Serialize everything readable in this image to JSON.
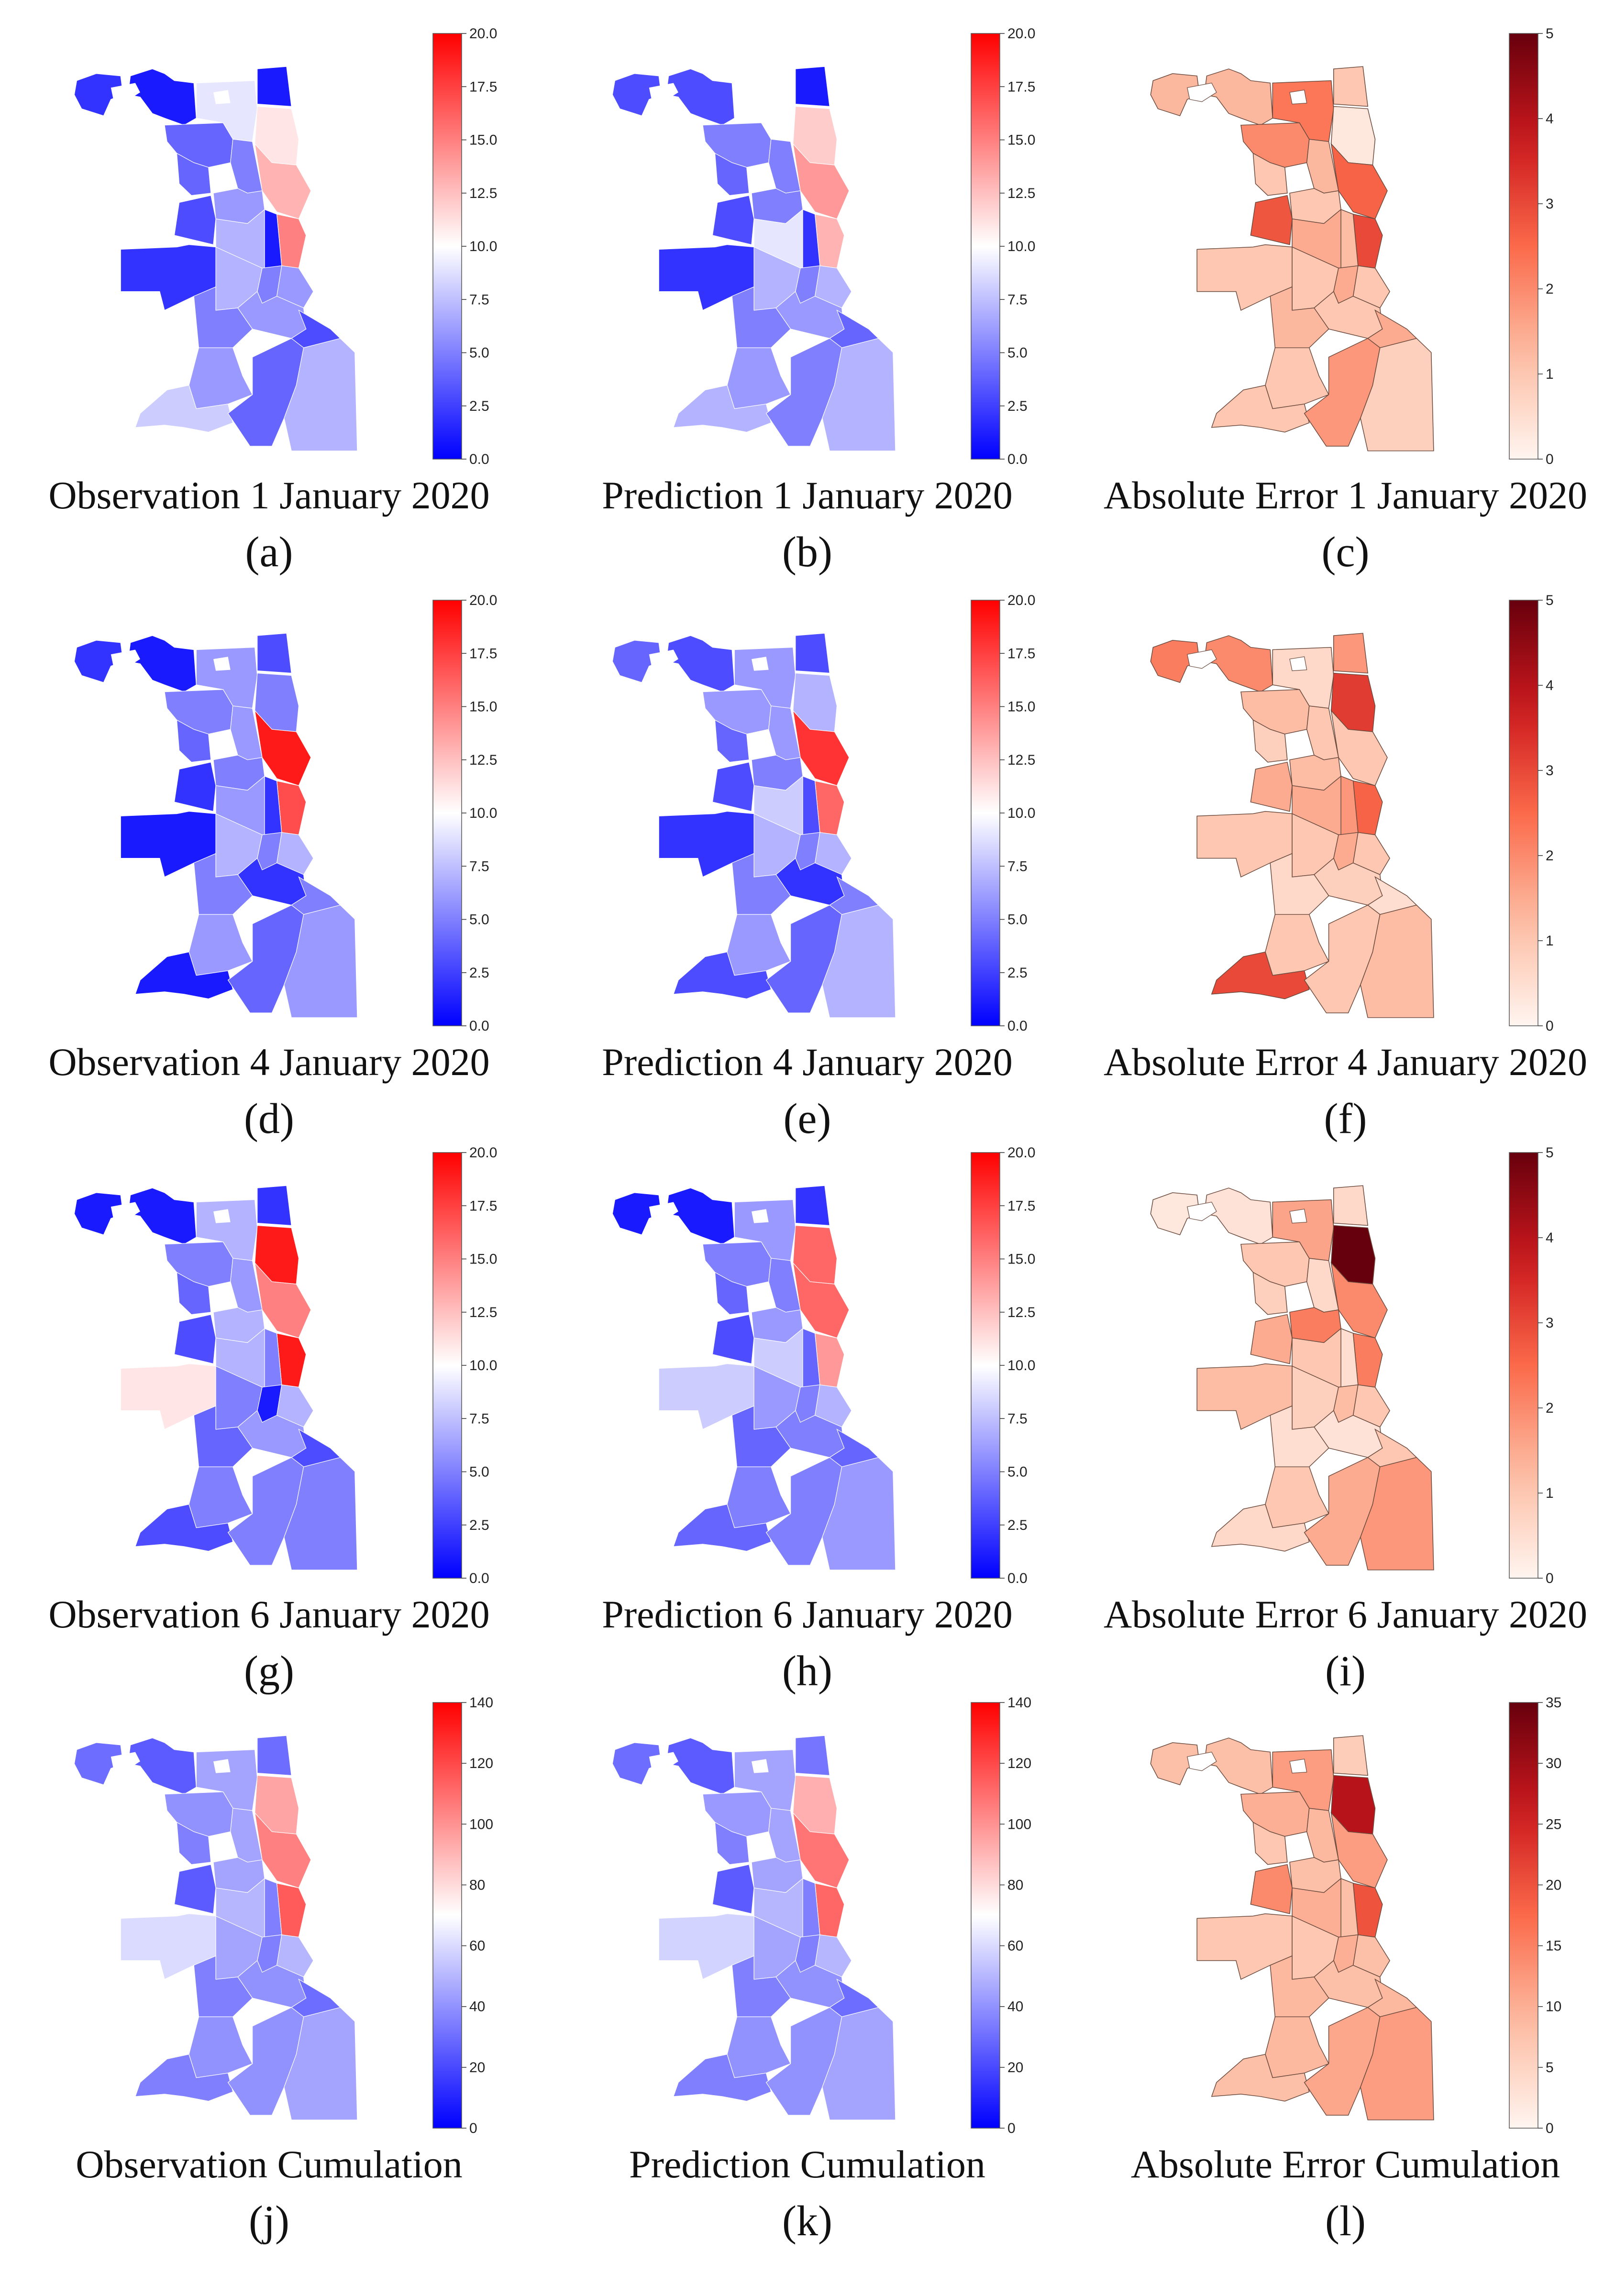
{
  "panels": [
    {
      "id": "a",
      "kind": "obs",
      "caption": "Observation 1 January 2020",
      "label": "(a)",
      "cbar": {
        "ticks": [
          "0.0",
          "2.5",
          "5.0",
          "7.5",
          "10.0",
          "12.5",
          "15.0",
          "17.5",
          "20.0"
        ],
        "vmax": 20
      },
      "values": [
        2,
        1,
        1,
        9,
        11,
        13,
        15,
        4,
        5,
        4,
        3,
        6,
        2,
        7,
        1,
        6,
        5,
        7,
        6,
        5,
        3,
        6,
        8,
        4,
        7
      ]
    },
    {
      "id": "b",
      "kind": "obs",
      "caption": "Prediction 1 January 2020",
      "label": "(b)",
      "cbar": {
        "ticks": [
          "0.0",
          "2.5",
          "5.0",
          "7.5",
          "10.0",
          "12.5",
          "15.0",
          "17.5",
          "20.0"
        ],
        "vmax": 20
      },
      "values": [
        3,
        3,
        1,
        10,
        12,
        14,
        13,
        5,
        5,
        4,
        3,
        5,
        2,
        9,
        2,
        7,
        5,
        7,
        6,
        5,
        4,
        6,
        7,
        5,
        7
      ]
    },
    {
      "id": "c",
      "kind": "err",
      "caption": "Absolute Error 1 January 2020",
      "label": "(c)",
      "cbar": {
        "ticks": [
          "0",
          "1",
          "2",
          "3",
          "4",
          "5"
        ],
        "vmax": 5
      },
      "values": [
        1.3,
        1.3,
        1.0,
        2.3,
        0.3,
        2.6,
        3.0,
        2.0,
        1.3,
        1.0,
        2.8,
        1.0,
        1.0,
        1.5,
        1.2,
        1.0,
        1.5,
        1.0,
        1.0,
        1.3,
        1.5,
        1.0,
        1.0,
        1.8,
        0.8
      ]
    },
    {
      "id": "d",
      "kind": "obs",
      "caption": "Observation 4 January 2020",
      "label": "(d)",
      "cbar": {
        "ticks": [
          "0.0",
          "2.5",
          "5.0",
          "7.5",
          "10.0",
          "12.5",
          "15.0",
          "17.5",
          "20.0"
        ],
        "vmax": 20
      },
      "values": [
        2,
        1,
        3,
        6,
        5,
        19,
        17,
        5,
        6,
        4,
        2,
        5,
        1,
        6,
        2,
        7,
        5,
        7,
        2,
        5,
        5,
        6,
        1,
        4,
        6
      ]
    },
    {
      "id": "e",
      "kind": "obs",
      "caption": "Prediction 4 January 2020",
      "label": "(e)",
      "cbar": {
        "ticks": [
          "0.0",
          "2.5",
          "5.0",
          "7.5",
          "10.0",
          "12.5",
          "15.0",
          "17.5",
          "20.0"
        ],
        "vmax": 20
      },
      "values": [
        4,
        3,
        3,
        6,
        7,
        18,
        16,
        6,
        6,
        4,
        3,
        5,
        2,
        8,
        3,
        7,
        5,
        7,
        2,
        5,
        5,
        6,
        3,
        4,
        7
      ]
    },
    {
      "id": "f",
      "kind": "err",
      "caption": "Absolute Error  4 January 2020",
      "label": "(f)",
      "cbar": {
        "ticks": [
          "0",
          "1",
          "2",
          "3",
          "4",
          "5"
        ],
        "vmax": 5
      },
      "values": [
        2.2,
        2.0,
        1.8,
        0.6,
        3.2,
        1.0,
        2.6,
        1.2,
        1.0,
        0.8,
        1.5,
        1.2,
        1.0,
        1.5,
        1.8,
        1.0,
        1.5,
        1.0,
        0.8,
        0.6,
        0.5,
        1.0,
        3.0,
        1.0,
        1.2
      ]
    },
    {
      "id": "g",
      "kind": "obs",
      "caption": "Observation 6 January 2020",
      "label": "(g)",
      "cbar": {
        "ticks": [
          "0.0",
          "2.5",
          "5.0",
          "7.5",
          "10.0",
          "12.5",
          "15.0",
          "17.5",
          "20.0"
        ],
        "vmax": 20
      },
      "values": [
        1,
        1,
        2,
        7,
        19,
        15,
        19,
        5,
        6,
        4,
        3,
        7,
        11,
        7,
        5,
        7,
        1,
        5,
        6,
        4,
        3,
        5,
        3,
        5,
        5
      ]
    },
    {
      "id": "h",
      "kind": "obs",
      "caption": "Prediction 6 January 2020",
      "label": "(h)",
      "cbar": {
        "ticks": [
          "0.0",
          "2.5",
          "5.0",
          "7.5",
          "10.0",
          "12.5",
          "15.0",
          "17.5",
          "20.0"
        ],
        "vmax": 20
      },
      "values": [
        1,
        1,
        2,
        6,
        16,
        16,
        14,
        5,
        5,
        4,
        3,
        6,
        8,
        8,
        4,
        7,
        5,
        6,
        5,
        4,
        4,
        5,
        4,
        5,
        6
      ]
    },
    {
      "id": "i",
      "kind": "err",
      "caption": "Absolute Error 6 January 2020",
      "label": "(i)",
      "cbar": {
        "ticks": [
          "0",
          "1",
          "2",
          "3",
          "4",
          "5"
        ],
        "vmax": 5
      },
      "values": [
        0.3,
        0.4,
        0.6,
        1.6,
        5.0,
        2.0,
        2.2,
        1.0,
        0.6,
        0.8,
        1.5,
        2.2,
        1.2,
        1.0,
        0.5,
        1.0,
        1.2,
        0.8,
        0.4,
        0.5,
        1.0,
        1.0,
        0.6,
        1.5,
        1.8
      ]
    },
    {
      "id": "j",
      "kind": "obs",
      "caption": "Observation Cumulation",
      "label": "(j)",
      "cbar": {
        "ticks": [
          "0",
          "20",
          "40",
          "60",
          "80",
          "100",
          "120",
          "140"
        ],
        "vmax": 140
      },
      "values": [
        30,
        25,
        30,
        45,
        95,
        105,
        115,
        40,
        45,
        35,
        25,
        45,
        60,
        50,
        35,
        50,
        35,
        45,
        40,
        35,
        30,
        40,
        35,
        40,
        45
      ]
    },
    {
      "id": "k",
      "kind": "obs",
      "caption": "Prediction Cumulation",
      "label": "(k)",
      "cbar": {
        "ticks": [
          "0",
          "20",
          "40",
          "60",
          "80",
          "100",
          "120",
          "140"
        ],
        "vmax": 140
      },
      "values": [
        30,
        25,
        32,
        45,
        92,
        108,
        112,
        42,
        45,
        35,
        25,
        45,
        58,
        50,
        35,
        50,
        35,
        45,
        40,
        35,
        30,
        40,
        35,
        40,
        45
      ]
    },
    {
      "id": "l",
      "kind": "err",
      "caption": "Absolute Error Cumulation",
      "label": "(l)",
      "cbar": {
        "ticks": [
          "0",
          "5",
          "10",
          "15",
          "20",
          "25",
          "30",
          "35"
        ],
        "vmax": 35
      },
      "values": [
        8,
        8,
        6,
        12,
        28,
        12,
        20,
        10,
        9,
        7,
        14,
        8,
        7,
        10,
        8,
        8,
        10,
        7,
        8,
        9,
        9,
        9,
        8,
        11,
        12
      ]
    }
  ]
}
